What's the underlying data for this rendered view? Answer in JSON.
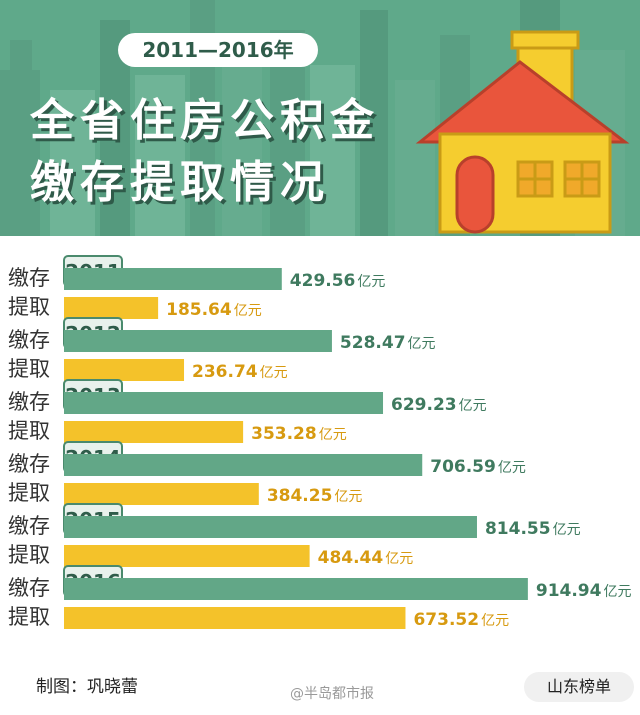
{
  "header": {
    "years_range": "2011—2016年",
    "title_line_1": "全省住房公积金",
    "title_line_2": "缴存提取情况"
  },
  "labels": {
    "deposit": "缴存",
    "withdraw": "提取",
    "unit": "亿元"
  },
  "colors": {
    "deposit": "#62a787",
    "withdraw": "#f4c22a",
    "deposit_text": "#3f7a5f",
    "withdraw_text": "#d79a10",
    "banner": "#5fa98a"
  },
  "chart_data": {
    "type": "bar",
    "orientation": "horizontal",
    "categories": [
      "2011",
      "2012",
      "2013",
      "2014",
      "2015",
      "2016"
    ],
    "series": [
      {
        "name": "缴存",
        "values": [
          429.56,
          528.47,
          629.23,
          706.59,
          814.55,
          914.94
        ],
        "labels": [
          "429.56",
          "528.47",
          "629.23",
          "706.59",
          "814.55",
          "914.94"
        ]
      },
      {
        "name": "提取",
        "values": [
          185.64,
          236.74,
          353.28,
          384.25,
          484.44,
          673.52
        ],
        "labels": [
          "185.64",
          "236.74",
          "353.28",
          "384.25",
          "484.44",
          "673.52"
        ]
      }
    ],
    "unit": "亿元",
    "grid": false
  },
  "footer": {
    "credit": "制图：巩晓蕾",
    "weibo": "@半岛都市报",
    "source": "山东榜单"
  }
}
